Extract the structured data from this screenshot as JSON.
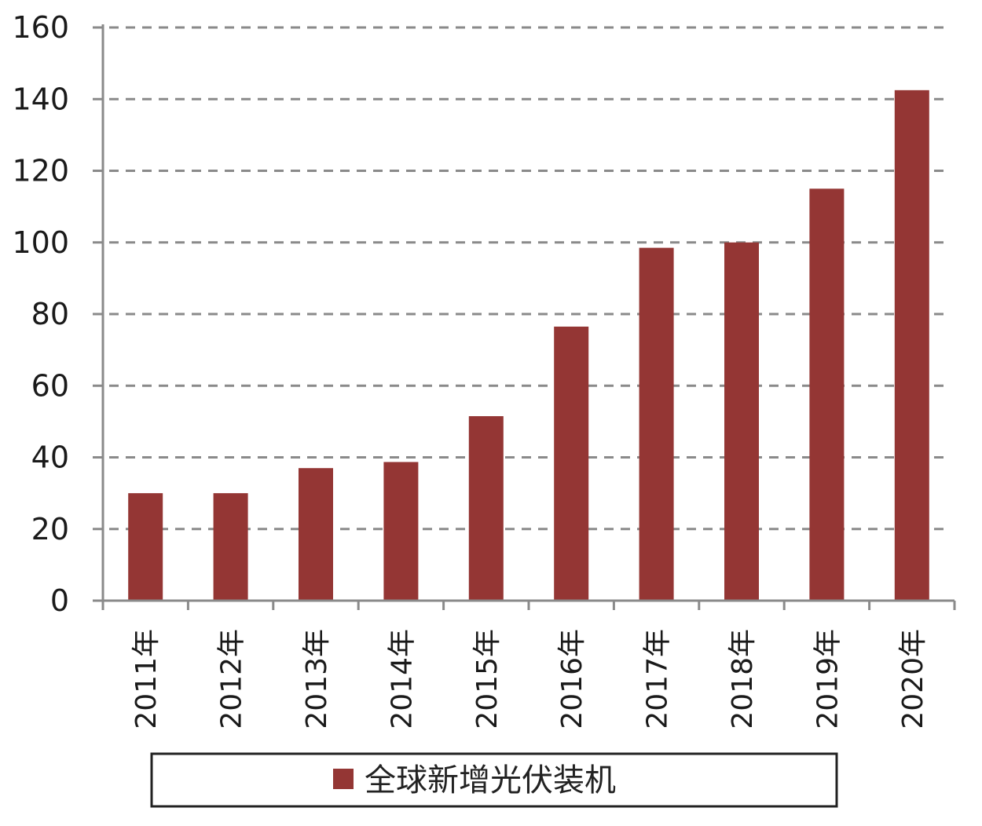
{
  "chart_data": {
    "type": "bar",
    "categories": [
      "2011年",
      "2012年",
      "2013年",
      "2014年",
      "2015年",
      "2016年",
      "2017年",
      "2018年",
      "2019年",
      "2020年"
    ],
    "series": [
      {
        "name": "全球新增光伏装机",
        "values": [
          30,
          30,
          37,
          38.7,
          51.5,
          76.5,
          98.5,
          100,
          115,
          142.5
        ],
        "color": "#943634"
      }
    ],
    "yticks": [
      "0",
      "20",
      "40",
      "60",
      "80",
      "100",
      "120",
      "140",
      "160"
    ],
    "ylim": [
      0,
      160
    ],
    "grid": true,
    "legend_position": "bottom"
  }
}
